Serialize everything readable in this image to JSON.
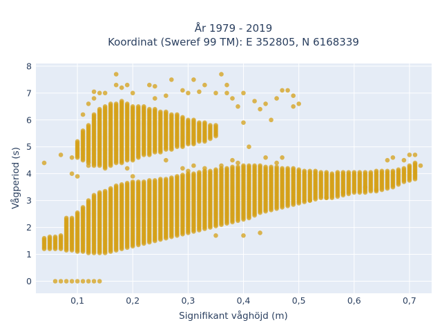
{
  "chart_data": {
    "type": "scatter",
    "title_lines": [
      "År 1979 - 2019",
      "Koordinat (Sweref 99 TM): E 352805, N 6168339"
    ],
    "xlabel": "Signifikant våghöjd (m)",
    "ylabel": "Vågperiod (s)",
    "xlim": [
      0.025,
      0.74
    ],
    "ylim": [
      -0.45,
      8.1
    ],
    "x_ticks": [
      0.1,
      0.2,
      0.3,
      0.4,
      0.5,
      0.6,
      0.7
    ],
    "x_tick_labels": [
      "0,1",
      "0,2",
      "0,3",
      "0,4",
      "0,5",
      "0,6",
      "0,7"
    ],
    "y_ticks": [
      0,
      1,
      2,
      3,
      4,
      5,
      6,
      7,
      8
    ],
    "y_tick_labels": [
      "0",
      "1",
      "2",
      "3",
      "4",
      "5",
      "6",
      "7",
      "8"
    ],
    "grid": true,
    "legend": "none",
    "colors": {
      "marker": "#d4a017",
      "plot_bg": "#e5ecf6",
      "grid": "#ffffff"
    },
    "series": [
      {
        "description": "lower wind-sea band (column ranges per x)",
        "columns": [
          {
            "x": 0.04,
            "y": [
              1.2,
              1.6
            ]
          },
          {
            "x": 0.05,
            "y": [
              1.2,
              1.65
            ]
          },
          {
            "x": 0.06,
            "y": [
              1.2,
              1.65
            ]
          },
          {
            "x": 0.07,
            "y": [
              1.2,
              1.7
            ]
          },
          {
            "x": 0.08,
            "y": [
              1.15,
              2.35
            ]
          },
          {
            "x": 0.09,
            "y": [
              1.15,
              2.35
            ]
          },
          {
            "x": 0.1,
            "y": [
              1.1,
              2.55
            ]
          },
          {
            "x": 0.11,
            "y": [
              1.1,
              2.75
            ]
          },
          {
            "x": 0.12,
            "y": [
              1.05,
              3.0
            ]
          },
          {
            "x": 0.13,
            "y": [
              1.05,
              3.2
            ]
          },
          {
            "x": 0.14,
            "y": [
              1.05,
              3.3
            ]
          },
          {
            "x": 0.15,
            "y": [
              1.05,
              3.35
            ]
          },
          {
            "x": 0.16,
            "y": [
              1.1,
              3.45
            ]
          },
          {
            "x": 0.17,
            "y": [
              1.15,
              3.55
            ]
          },
          {
            "x": 0.18,
            "y": [
              1.2,
              3.6
            ]
          },
          {
            "x": 0.19,
            "y": [
              1.25,
              3.65
            ]
          },
          {
            "x": 0.2,
            "y": [
              1.3,
              3.7
            ]
          },
          {
            "x": 0.21,
            "y": [
              1.35,
              3.7
            ]
          },
          {
            "x": 0.22,
            "y": [
              1.4,
              3.7
            ]
          },
          {
            "x": 0.23,
            "y": [
              1.45,
              3.75
            ]
          },
          {
            "x": 0.24,
            "y": [
              1.5,
              3.75
            ]
          },
          {
            "x": 0.25,
            "y": [
              1.55,
              3.8
            ]
          },
          {
            "x": 0.26,
            "y": [
              1.6,
              3.8
            ]
          },
          {
            "x": 0.27,
            "y": [
              1.65,
              3.85
            ]
          },
          {
            "x": 0.28,
            "y": [
              1.7,
              3.9
            ]
          },
          {
            "x": 0.29,
            "y": [
              1.75,
              3.95
            ]
          },
          {
            "x": 0.3,
            "y": [
              1.8,
              4.0
            ]
          },
          {
            "x": 0.31,
            "y": [
              1.85,
              4.0
            ]
          },
          {
            "x": 0.32,
            "y": [
              1.9,
              4.05
            ]
          },
          {
            "x": 0.33,
            "y": [
              1.95,
              4.1
            ]
          },
          {
            "x": 0.34,
            "y": [
              2.0,
              4.1
            ]
          },
          {
            "x": 0.35,
            "y": [
              2.05,
              4.15
            ]
          },
          {
            "x": 0.36,
            "y": [
              2.1,
              4.2
            ]
          },
          {
            "x": 0.37,
            "y": [
              2.15,
              4.2
            ]
          },
          {
            "x": 0.38,
            "y": [
              2.2,
              4.25
            ]
          },
          {
            "x": 0.39,
            "y": [
              2.25,
              4.25
            ]
          },
          {
            "x": 0.4,
            "y": [
              2.3,
              4.3
            ]
          },
          {
            "x": 0.41,
            "y": [
              2.35,
              4.3
            ]
          },
          {
            "x": 0.42,
            "y": [
              2.45,
              4.3
            ]
          },
          {
            "x": 0.43,
            "y": [
              2.55,
              4.3
            ]
          },
          {
            "x": 0.44,
            "y": [
              2.6,
              4.25
            ]
          },
          {
            "x": 0.45,
            "y": [
              2.65,
              4.25
            ]
          },
          {
            "x": 0.46,
            "y": [
              2.7,
              4.25
            ]
          },
          {
            "x": 0.47,
            "y": [
              2.75,
              4.2
            ]
          },
          {
            "x": 0.48,
            "y": [
              2.8,
              4.2
            ]
          },
          {
            "x": 0.49,
            "y": [
              2.85,
              4.2
            ]
          },
          {
            "x": 0.5,
            "y": [
              2.9,
              4.15
            ]
          },
          {
            "x": 0.51,
            "y": [
              2.95,
              4.1
            ]
          },
          {
            "x": 0.52,
            "y": [
              3.0,
              4.1
            ]
          },
          {
            "x": 0.53,
            "y": [
              3.05,
              4.1
            ]
          },
          {
            "x": 0.54,
            "y": [
              3.1,
              4.05
            ]
          },
          {
            "x": 0.55,
            "y": [
              3.1,
              4.05
            ]
          },
          {
            "x": 0.56,
            "y": [
              3.1,
              4.0
            ]
          },
          {
            "x": 0.57,
            "y": [
              3.15,
              4.05
            ]
          },
          {
            "x": 0.58,
            "y": [
              3.2,
              4.05
            ]
          },
          {
            "x": 0.59,
            "y": [
              3.25,
              4.05
            ]
          },
          {
            "x": 0.6,
            "y": [
              3.3,
              4.05
            ]
          },
          {
            "x": 0.61,
            "y": [
              3.3,
              4.05
            ]
          },
          {
            "x": 0.62,
            "y": [
              3.3,
              4.05
            ]
          },
          {
            "x": 0.63,
            "y": [
              3.35,
              4.05
            ]
          },
          {
            "x": 0.64,
            "y": [
              3.35,
              4.1
            ]
          },
          {
            "x": 0.65,
            "y": [
              3.4,
              4.1
            ]
          },
          {
            "x": 0.66,
            "y": [
              3.45,
              4.1
            ]
          },
          {
            "x": 0.67,
            "y": [
              3.5,
              4.1
            ]
          },
          {
            "x": 0.68,
            "y": [
              3.6,
              4.15
            ]
          },
          {
            "x": 0.69,
            "y": [
              3.7,
              4.2
            ]
          },
          {
            "x": 0.7,
            "y": [
              3.75,
              4.3
            ]
          },
          {
            "x": 0.71,
            "y": [
              3.8,
              4.4
            ]
          }
        ]
      },
      {
        "description": "upper swell band (column ranges per x)",
        "columns": [
          {
            "x": 0.1,
            "y": [
              4.6,
              5.2
            ]
          },
          {
            "x": 0.11,
            "y": [
              4.5,
              5.6
            ]
          },
          {
            "x": 0.12,
            "y": [
              4.4,
              5.8
            ]
          },
          {
            "x": 0.13,
            "y": [
              4.3,
              6.2
            ]
          },
          {
            "x": 0.14,
            "y": [
              4.3,
              6.4
            ]
          },
          {
            "x": 0.15,
            "y": [
              4.2,
              6.5
            ]
          },
          {
            "x": 0.16,
            "y": [
              4.3,
              6.6
            ]
          },
          {
            "x": 0.17,
            "y": [
              4.4,
              6.6
            ]
          },
          {
            "x": 0.18,
            "y": [
              4.4,
              6.7
            ]
          },
          {
            "x": 0.19,
            "y": [
              4.5,
              6.6
            ]
          },
          {
            "x": 0.2,
            "y": [
              4.5,
              6.5
            ]
          },
          {
            "x": 0.21,
            "y": [
              4.6,
              6.5
            ]
          },
          {
            "x": 0.22,
            "y": [
              4.7,
              6.5
            ]
          },
          {
            "x": 0.23,
            "y": [
              4.7,
              6.4
            ]
          },
          {
            "x": 0.24,
            "y": [
              4.8,
              6.4
            ]
          },
          {
            "x": 0.25,
            "y": [
              4.8,
              6.3
            ]
          },
          {
            "x": 0.26,
            "y": [
              4.9,
              6.3
            ]
          },
          {
            "x": 0.27,
            "y": [
              4.9,
              6.2
            ]
          },
          {
            "x": 0.28,
            "y": [
              5.0,
              6.2
            ]
          },
          {
            "x": 0.29,
            "y": [
              5.0,
              6.1
            ]
          },
          {
            "x": 0.3,
            "y": [
              5.1,
              6.0
            ]
          },
          {
            "x": 0.31,
            "y": [
              5.1,
              6.0
            ]
          },
          {
            "x": 0.32,
            "y": [
              5.2,
              5.9
            ]
          },
          {
            "x": 0.33,
            "y": [
              5.2,
              5.9
            ]
          },
          {
            "x": 0.34,
            "y": [
              5.3,
              5.8
            ]
          },
          {
            "x": 0.35,
            "y": [
              5.4,
              5.8
            ]
          }
        ]
      },
      {
        "description": "calm records at zero period",
        "points": [
          [
            0.06,
            0
          ],
          [
            0.07,
            0
          ],
          [
            0.08,
            0
          ],
          [
            0.09,
            0
          ],
          [
            0.1,
            0
          ],
          [
            0.11,
            0
          ],
          [
            0.12,
            0
          ],
          [
            0.13,
            0
          ],
          [
            0.14,
            0
          ]
        ]
      },
      {
        "description": "scattered outliers",
        "points": [
          [
            0.04,
            4.4
          ],
          [
            0.07,
            4.7
          ],
          [
            0.09,
            4.0
          ],
          [
            0.09,
            4.6
          ],
          [
            0.1,
            3.9
          ],
          [
            0.11,
            6.2
          ],
          [
            0.12,
            4.3
          ],
          [
            0.12,
            6.6
          ],
          [
            0.13,
            7.05
          ],
          [
            0.13,
            6.8
          ],
          [
            0.14,
            7.0
          ],
          [
            0.15,
            7.0
          ],
          [
            0.17,
            7.7
          ],
          [
            0.17,
            7.3
          ],
          [
            0.18,
            7.2
          ],
          [
            0.19,
            7.3
          ],
          [
            0.2,
            7.0
          ],
          [
            0.19,
            4.2
          ],
          [
            0.2,
            3.9
          ],
          [
            0.23,
            7.3
          ],
          [
            0.24,
            7.25
          ],
          [
            0.24,
            6.8
          ],
          [
            0.26,
            6.9
          ],
          [
            0.27,
            7.5
          ],
          [
            0.29,
            7.1
          ],
          [
            0.3,
            7.0
          ],
          [
            0.3,
            4.1
          ],
          [
            0.31,
            7.5
          ],
          [
            0.32,
            7.05
          ],
          [
            0.33,
            7.3
          ],
          [
            0.35,
            7.0
          ],
          [
            0.36,
            7.7
          ],
          [
            0.37,
            7.3
          ],
          [
            0.37,
            7.0
          ],
          [
            0.38,
            6.8
          ],
          [
            0.38,
            4.5
          ],
          [
            0.39,
            6.5
          ],
          [
            0.4,
            5.9
          ],
          [
            0.4,
            7.0
          ],
          [
            0.41,
            5.0
          ],
          [
            0.42,
            6.7
          ],
          [
            0.43,
            6.4
          ],
          [
            0.44,
            6.6
          ],
          [
            0.45,
            6.0
          ],
          [
            0.46,
            6.8
          ],
          [
            0.47,
            7.1
          ],
          [
            0.48,
            7.1
          ],
          [
            0.49,
            6.9
          ],
          [
            0.49,
            6.5
          ],
          [
            0.5,
            6.6
          ],
          [
            0.43,
            1.8
          ],
          [
            0.4,
            1.7
          ],
          [
            0.35,
            1.7
          ],
          [
            0.26,
            4.5
          ],
          [
            0.29,
            4.2
          ],
          [
            0.31,
            4.3
          ],
          [
            0.33,
            4.2
          ],
          [
            0.36,
            4.3
          ],
          [
            0.39,
            4.4
          ],
          [
            0.44,
            4.6
          ],
          [
            0.46,
            4.4
          ],
          [
            0.47,
            4.6
          ],
          [
            0.66,
            4.5
          ],
          [
            0.67,
            4.6
          ],
          [
            0.69,
            4.5
          ],
          [
            0.7,
            4.7
          ],
          [
            0.71,
            4.7
          ],
          [
            0.72,
            4.3
          ],
          [
            0.52,
            3.0
          ],
          [
            0.55,
            3.1
          ],
          [
            0.58,
            3.3
          ],
          [
            0.62,
            3.5
          ],
          [
            0.64,
            3.4
          ]
        ]
      }
    ]
  }
}
